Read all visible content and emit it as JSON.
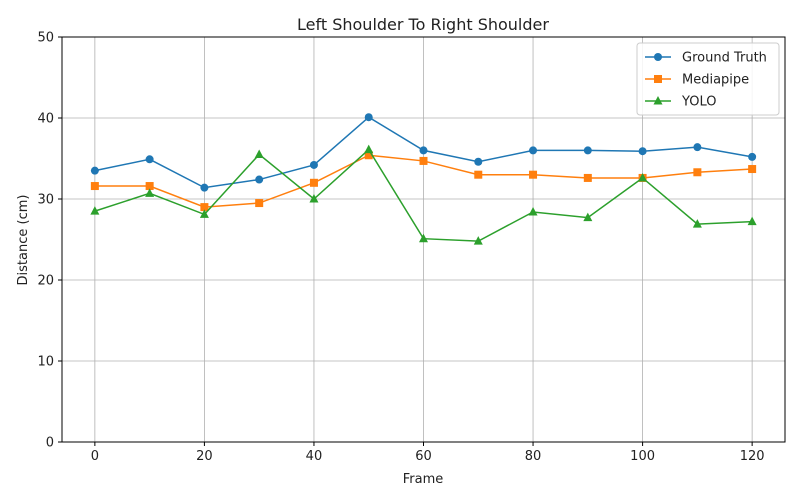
{
  "chart_data": {
    "type": "line",
    "title": "Left Shoulder To Right Shoulder",
    "xlabel": "Frame",
    "ylabel": "Distance (cm)",
    "x": [
      0,
      10,
      20,
      30,
      40,
      50,
      60,
      70,
      80,
      90,
      100,
      110,
      120
    ],
    "xlim": [
      -6,
      126
    ],
    "ylim": [
      0,
      50
    ],
    "xticks": [
      0,
      20,
      40,
      60,
      80,
      100,
      120
    ],
    "yticks": [
      0,
      10,
      20,
      30,
      40,
      50
    ],
    "grid": true,
    "legend_position": "top-right",
    "series": [
      {
        "name": "Ground Truth",
        "color": "#1f77b4",
        "marker": "circle",
        "values": [
          33.5,
          34.9,
          31.4,
          32.4,
          34.2,
          40.1,
          36.0,
          34.6,
          36.0,
          36.0,
          35.9,
          36.4,
          35.2
        ]
      },
      {
        "name": "Mediapipe",
        "color": "#ff7f0e",
        "marker": "square",
        "values": [
          31.6,
          31.6,
          29.0,
          29.5,
          32.0,
          35.4,
          34.7,
          33.0,
          33.0,
          32.6,
          32.6,
          33.3,
          33.7
        ]
      },
      {
        "name": "YOLO",
        "color": "#2ca02c",
        "marker": "triangle",
        "values": [
          28.5,
          30.7,
          28.1,
          35.5,
          30.0,
          36.1,
          25.1,
          24.8,
          28.4,
          27.7,
          32.6,
          26.9,
          27.2
        ]
      }
    ]
  }
}
